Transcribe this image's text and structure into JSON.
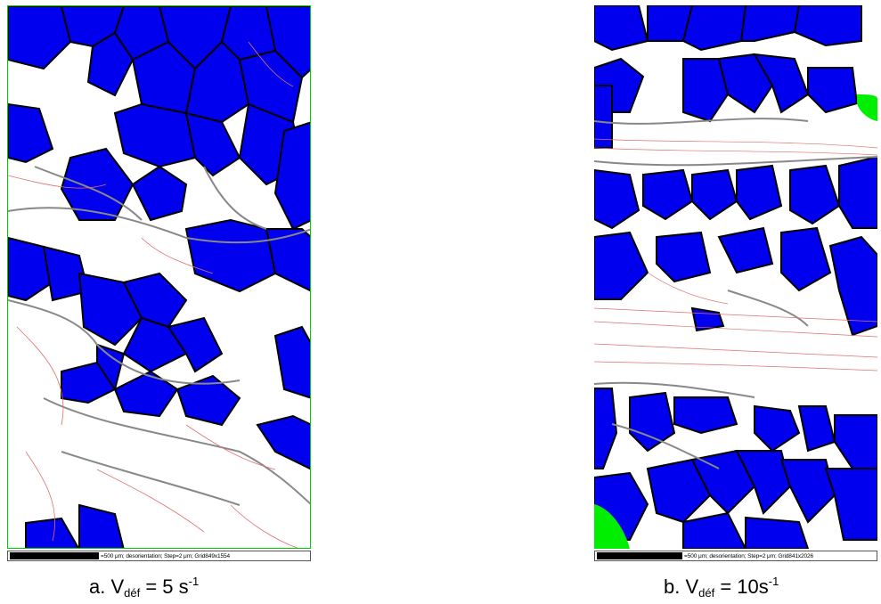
{
  "panels": [
    {
      "id": "a",
      "scale_text": "=500 μm; desorientation; Step=2 μm; Grid849x1554",
      "caption": {
        "prefix": "a. V",
        "sub": "déf",
        "mid": " = 5 s",
        "sup": "-1"
      }
    },
    {
      "id": "b",
      "scale_text": "=500 μm; desorientation; Step=2 μm; Grid841x2026",
      "caption": {
        "prefix": "b. V",
        "sub": "déf",
        "mid": " = 10s",
        "sup": "-1"
      }
    }
  ],
  "colors": {
    "phase_blue": "#0000ee",
    "border_green": "#00ee00",
    "grain_boundary_black": "#000000",
    "grain_boundary_gray": "#888888",
    "low_angle_red": "#e07070"
  }
}
